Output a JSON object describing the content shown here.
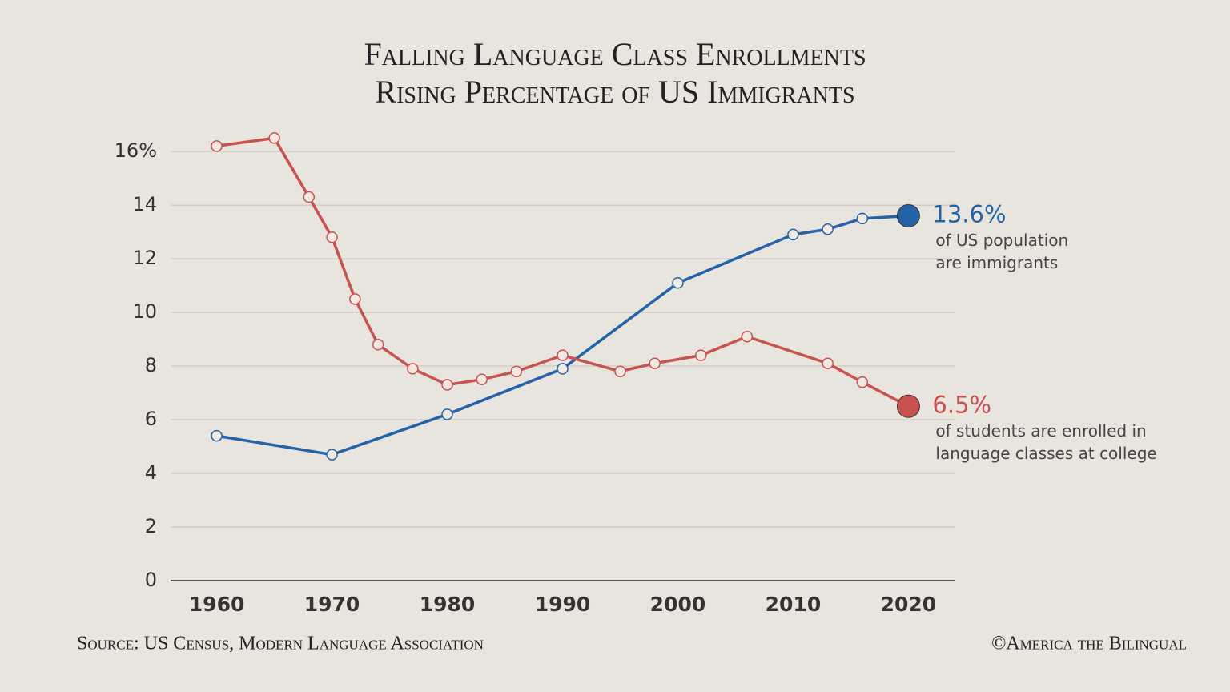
{
  "chart_data": {
    "type": "line",
    "title": [
      "Falling Language Class Enrollments",
      "Rising Percentage of US Immigrants"
    ],
    "xlim": [
      1956,
      2024
    ],
    "xticks": [
      1960,
      1970,
      1980,
      1990,
      2000,
      2010,
      2020
    ],
    "ylim": [
      0,
      16.6
    ],
    "yticks": [
      0,
      2,
      4,
      6,
      8,
      10,
      12,
      14,
      {
        "value": 16,
        "label": "16%"
      }
    ],
    "grid": true,
    "series": [
      {
        "color": "#2563a8",
        "x": [
          1960,
          1970,
          1980,
          1990,
          2000,
          2010,
          2013,
          2016,
          2020
        ],
        "values": [
          5.4,
          4.7,
          6.2,
          7.9,
          11.1,
          12.9,
          13.1,
          13.5,
          13.6
        ],
        "label": "13.6%",
        "note": [
          "of US population",
          "are immigrants"
        ]
      },
      {
        "color": "#c8524f",
        "x": [
          1960,
          1965,
          1968,
          1970,
          1972,
          1974,
          1977,
          1980,
          1983,
          1986,
          1990,
          1995,
          1998,
          2002,
          2006,
          2013,
          2016,
          2020
        ],
        "values": [
          16.2,
          16.5,
          14.3,
          12.8,
          10.5,
          8.8,
          7.9,
          7.3,
          7.5,
          7.8,
          8.4,
          7.8,
          8.1,
          8.4,
          9.1,
          8.1,
          7.4,
          6.5
        ],
        "label": "6.5%",
        "note": [
          "of students are enrolled in",
          "language classes at college"
        ]
      }
    ],
    "source": "Source: US Census, Modern Language Association",
    "credit": "©America the Bilingual"
  }
}
